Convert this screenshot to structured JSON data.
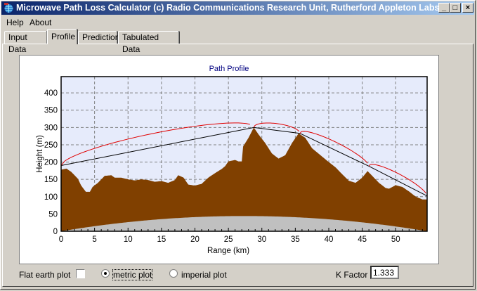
{
  "window": {
    "title": "Microwave Path Loss Calculator  (c) Radio Communications Research Unit, Rutherford Appleton Labs",
    "controls": [
      "_",
      "□",
      "×"
    ]
  },
  "menu": [
    {
      "label": "Help",
      "accel": "H"
    },
    {
      "label": "About",
      "accel": "A"
    }
  ],
  "tabs": [
    {
      "label": "Input Data",
      "active": false
    },
    {
      "label": "Profile",
      "active": true
    },
    {
      "label": "Prediction",
      "active": false
    },
    {
      "label": "Tabulated Data",
      "active": false
    }
  ],
  "controls": {
    "flat_earth_label": "Flat earth plot",
    "flat_earth_checked": false,
    "metric_label": "metric plot",
    "metric_selected": true,
    "imperial_label": "imperial plot",
    "imperial_selected": false,
    "k_factor_label": "K Factor",
    "k_factor_value": "1.333"
  },
  "chart_data": {
    "type": "area",
    "title": "Path Profile",
    "xlabel": "Range (km)",
    "ylabel": "Height (m)",
    "xlim": [
      0,
      54.7
    ],
    "ylim": [
      0,
      447
    ],
    "xticks": [
      0,
      5,
      10,
      15,
      20,
      25,
      30,
      35,
      40,
      45,
      50
    ],
    "yticks": [
      0,
      50,
      100,
      150,
      200,
      250,
      300,
      350,
      400
    ],
    "grid": true,
    "k_factor": 1.333,
    "colors": {
      "plot_bg": "#e6ebfb",
      "terrain": "#804000",
      "earth_bulge": "#c0c0c0",
      "los": "#000000",
      "fresnel": "#e00000",
      "title": "#000080"
    },
    "terrain": [
      [
        0,
        178
      ],
      [
        0.8,
        181
      ],
      [
        1.5,
        172
      ],
      [
        2.5,
        152
      ],
      [
        3,
        132
      ],
      [
        3.7,
        114
      ],
      [
        4.3,
        114
      ],
      [
        4.7,
        128
      ],
      [
        5.5,
        140
      ],
      [
        6.5,
        160
      ],
      [
        7.5,
        162
      ],
      [
        8,
        155
      ],
      [
        9,
        155
      ],
      [
        10,
        150
      ],
      [
        11,
        147
      ],
      [
        12,
        150
      ],
      [
        13,
        148
      ],
      [
        14,
        143
      ],
      [
        15,
        145
      ],
      [
        16,
        140
      ],
      [
        17,
        148
      ],
      [
        17.5,
        162
      ],
      [
        18.3,
        155
      ],
      [
        19,
        135
      ],
      [
        20,
        132
      ],
      [
        21,
        137
      ],
      [
        22,
        155
      ],
      [
        23,
        168
      ],
      [
        24,
        180
      ],
      [
        24.5,
        188
      ],
      [
        25,
        202
      ],
      [
        26,
        206
      ],
      [
        26.5,
        202
      ],
      [
        27,
        202
      ],
      [
        27.2,
        245
      ],
      [
        28,
        270
      ],
      [
        28.8,
        300
      ],
      [
        29.5,
        280
      ],
      [
        30.5,
        255
      ],
      [
        31.5,
        225
      ],
      [
        32.5,
        210
      ],
      [
        33.5,
        220
      ],
      [
        34.5,
        255
      ],
      [
        35.5,
        283
      ],
      [
        36.5,
        270
      ],
      [
        37.5,
        240
      ],
      [
        39,
        216
      ],
      [
        40,
        200
      ],
      [
        41,
        185
      ],
      [
        42,
        165
      ],
      [
        43,
        146
      ],
      [
        44,
        140
      ],
      [
        45,
        155
      ],
      [
        45.8,
        174
      ],
      [
        46.5,
        160
      ],
      [
        47.5,
        140
      ],
      [
        48.5,
        125
      ],
      [
        49,
        123
      ],
      [
        50,
        133
      ],
      [
        51,
        128
      ],
      [
        52,
        115
      ],
      [
        53,
        100
      ],
      [
        54,
        92
      ],
      [
        54.7,
        92
      ]
    ],
    "los_path": [
      [
        0,
        190
      ],
      [
        28.8,
        300
      ],
      [
        35.7,
        283
      ],
      [
        46,
        188
      ],
      [
        54.7,
        102
      ]
    ]
  }
}
